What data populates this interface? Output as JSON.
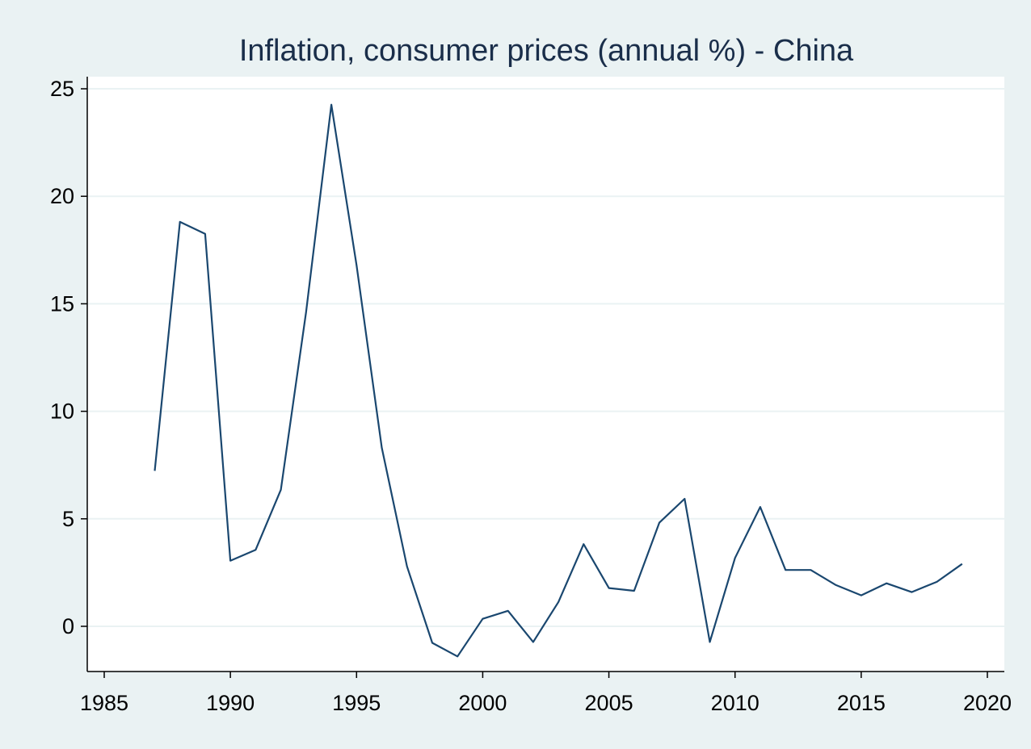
{
  "chart_data": {
    "type": "line",
    "title": "Inflation, consumer prices (annual %) - China",
    "xlabel": "",
    "ylabel": "",
    "xlim": [
      1985,
      2020
    ],
    "ylim": [
      -2,
      25
    ],
    "xticks": [
      1985,
      1990,
      1995,
      2000,
      2005,
      2010,
      2015,
      2020
    ],
    "yticks": [
      0,
      5,
      10,
      15,
      20,
      25
    ],
    "grid": true,
    "line_color": "#1a476f",
    "background_color": "#eaf2f3",
    "x": [
      1987,
      1988,
      1989,
      1990,
      1991,
      1992,
      1993,
      1994,
      1995,
      1996,
      1997,
      1998,
      1999,
      2000,
      2001,
      2002,
      2003,
      2004,
      2005,
      2006,
      2007,
      2008,
      2009,
      2010,
      2011,
      2012,
      2013,
      2014,
      2015,
      2016,
      2017,
      2018,
      2019
    ],
    "values": [
      7.23,
      18.81,
      18.25,
      3.05,
      3.56,
      6.35,
      14.61,
      24.26,
      16.79,
      8.31,
      2.79,
      -0.77,
      -1.4,
      0.35,
      0.72,
      -0.73,
      1.13,
      3.82,
      1.78,
      1.65,
      4.82,
      5.93,
      -0.73,
      3.18,
      5.55,
      2.62,
      2.62,
      1.92,
      1.44,
      2.0,
      1.59,
      2.07,
      2.9
    ]
  }
}
